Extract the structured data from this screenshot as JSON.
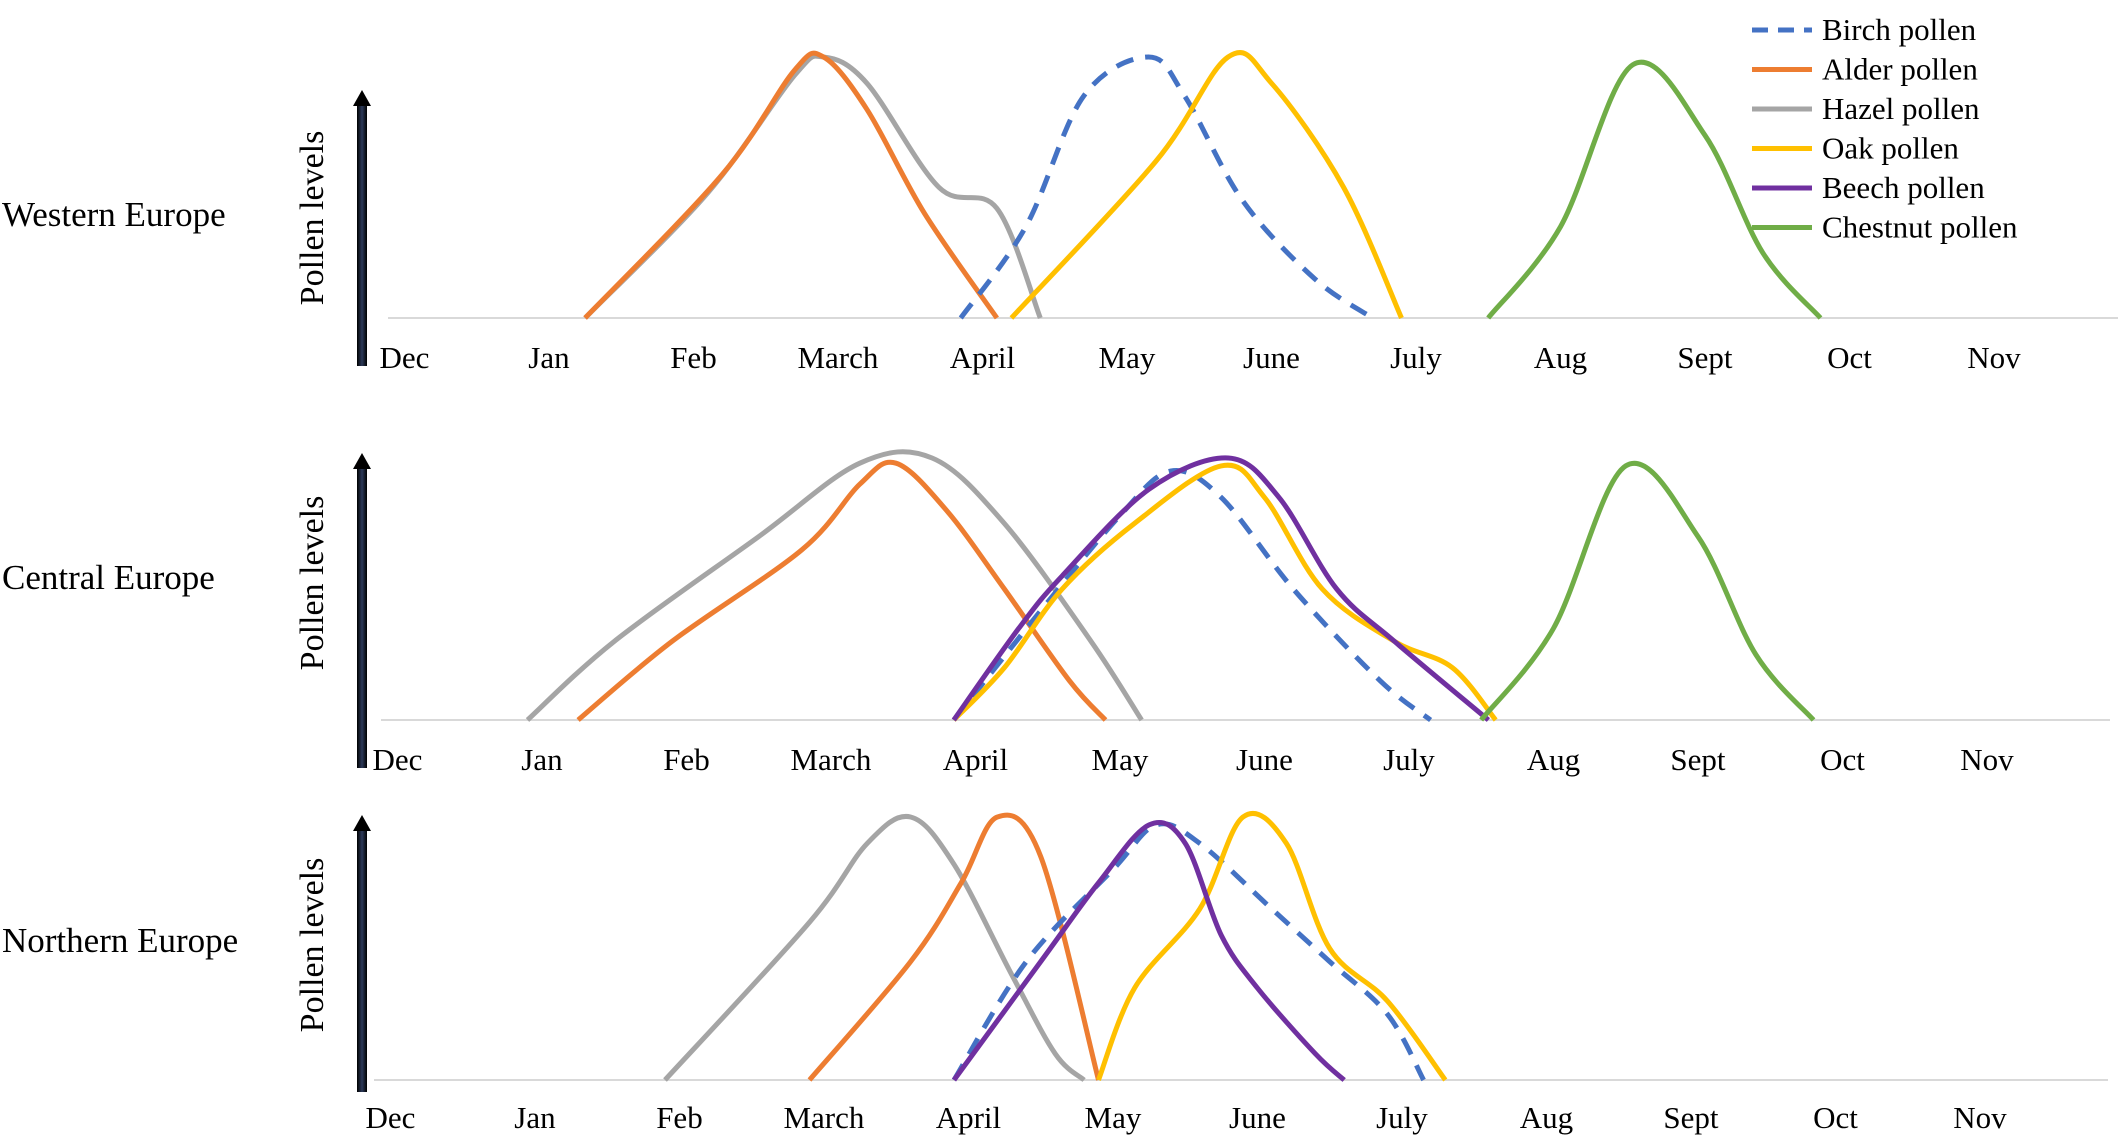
{
  "chart_data": {
    "type": "line",
    "y_axis_label": "Pollen levels",
    "months": [
      "Dec",
      "Jan",
      "Feb",
      "March",
      "April",
      "May",
      "June",
      "July",
      "Aug",
      "Sept",
      "Oct",
      "Nov"
    ],
    "x_unit": "months from start of Dec",
    "ylim": [
      0,
      1
    ],
    "legend": {
      "placement": "top-right",
      "items": [
        {
          "name": "Birch pollen",
          "color": "#4472c4",
          "dashed": true
        },
        {
          "name": "Alder pollen",
          "color": "#ed7d31",
          "dashed": false
        },
        {
          "name": "Hazel pollen",
          "color": "#a5a5a5",
          "dashed": false
        },
        {
          "name": "Oak pollen",
          "color": "#ffc000",
          "dashed": false
        },
        {
          "name": "Beech pollen",
          "color": "#7030a0",
          "dashed": false
        },
        {
          "name": "Chestnut pollen",
          "color": "#70ad47",
          "dashed": false
        }
      ]
    },
    "panels": [
      {
        "region": "Western Europe",
        "series": [
          {
            "name": "Hazel pollen",
            "points": [
              [
                1.35,
                0
              ],
              [
                2.2,
                0.48
              ],
              [
                2.8,
                0.93
              ],
              [
                3.0,
                1.0
              ],
              [
                3.3,
                0.9
              ],
              [
                3.8,
                0.5
              ],
              [
                4.2,
                0.42
              ],
              [
                4.5,
                0
              ]
            ]
          },
          {
            "name": "Alder pollen",
            "points": [
              [
                1.35,
                0
              ],
              [
                2.3,
                0.55
              ],
              [
                2.8,
                0.95
              ],
              [
                3.0,
                1.0
              ],
              [
                3.3,
                0.8
              ],
              [
                3.7,
                0.4
              ],
              [
                4.2,
                0
              ]
            ]
          },
          {
            "name": "Birch pollen",
            "points": [
              [
                3.95,
                0
              ],
              [
                4.4,
                0.35
              ],
              [
                4.8,
                0.85
              ],
              [
                5.25,
                1.0
              ],
              [
                5.5,
                0.85
              ],
              [
                5.9,
                0.45
              ],
              [
                6.4,
                0.15
              ],
              [
                6.8,
                0
              ]
            ]
          },
          {
            "name": "Oak pollen",
            "points": [
              [
                4.3,
                0
              ],
              [
                5.3,
                0.6
              ],
              [
                5.8,
                1.0
              ],
              [
                6.1,
                0.9
              ],
              [
                6.6,
                0.5
              ],
              [
                7.0,
                0
              ]
            ]
          },
          {
            "name": "Chestnut pollen",
            "points": [
              [
                7.6,
                0
              ],
              [
                8.1,
                0.35
              ],
              [
                8.6,
                0.97
              ],
              [
                9.1,
                0.7
              ],
              [
                9.5,
                0.25
              ],
              [
                9.9,
                0
              ]
            ]
          }
        ]
      },
      {
        "region": "Central Europe",
        "series": [
          {
            "name": "Hazel pollen",
            "points": [
              [
                1.0,
                0
              ],
              [
                1.6,
                0.3
              ],
              [
                2.6,
                0.7
              ],
              [
                3.3,
                0.98
              ],
              [
                3.8,
                1.0
              ],
              [
                4.3,
                0.75
              ],
              [
                4.9,
                0.3
              ],
              [
                5.25,
                0
              ]
            ]
          },
          {
            "name": "Alder pollen",
            "points": [
              [
                1.35,
                0
              ],
              [
                2.0,
                0.3
              ],
              [
                2.9,
                0.65
              ],
              [
                3.3,
                0.9
              ],
              [
                3.55,
                0.98
              ],
              [
                3.9,
                0.8
              ],
              [
                4.3,
                0.5
              ],
              [
                4.75,
                0.15
              ],
              [
                5.0,
                0
              ]
            ]
          },
          {
            "name": "Birch pollen",
            "points": [
              [
                3.95,
                0
              ],
              [
                4.6,
                0.45
              ],
              [
                5.1,
                0.78
              ],
              [
                5.45,
                0.95
              ],
              [
                5.8,
                0.85
              ],
              [
                6.3,
                0.5
              ],
              [
                6.9,
                0.15
              ],
              [
                7.25,
                0
              ]
            ]
          },
          {
            "name": "Oak pollen",
            "points": [
              [
                3.95,
                0
              ],
              [
                4.3,
                0.2
              ],
              [
                4.7,
                0.5
              ],
              [
                5.2,
                0.75
              ],
              [
                5.8,
                0.97
              ],
              [
                6.1,
                0.85
              ],
              [
                6.5,
                0.5
              ],
              [
                7.0,
                0.3
              ],
              [
                7.4,
                0.2
              ],
              [
                7.7,
                0
              ]
            ]
          },
          {
            "name": "Beech pollen",
            "points": [
              [
                3.95,
                0
              ],
              [
                4.4,
                0.35
              ],
              [
                4.7,
                0.55
              ],
              [
                5.3,
                0.88
              ],
              [
                5.85,
                1.0
              ],
              [
                6.2,
                0.85
              ],
              [
                6.6,
                0.5
              ],
              [
                7.0,
                0.3
              ],
              [
                7.65,
                0
              ]
            ]
          },
          {
            "name": "Chestnut pollen",
            "points": [
              [
                7.6,
                0
              ],
              [
                8.1,
                0.35
              ],
              [
                8.6,
                0.97
              ],
              [
                9.1,
                0.7
              ],
              [
                9.5,
                0.25
              ],
              [
                9.9,
                0
              ]
            ]
          }
        ]
      },
      {
        "region": "Northern Europe",
        "series": [
          {
            "name": "Hazel pollen",
            "points": [
              [
                2.0,
                0
              ],
              [
                3.0,
                0.6
              ],
              [
                3.4,
                0.9
              ],
              [
                3.7,
                1.0
              ],
              [
                4.0,
                0.82
              ],
              [
                4.4,
                0.4
              ],
              [
                4.7,
                0.1
              ],
              [
                4.9,
                0
              ]
            ]
          },
          {
            "name": "Alder pollen",
            "points": [
              [
                3.0,
                0
              ],
              [
                3.7,
                0.45
              ],
              [
                4.05,
                0.75
              ],
              [
                4.3,
                1.0
              ],
              [
                4.6,
                0.85
              ],
              [
                5.0,
                0
              ]
            ]
          },
          {
            "name": "Birch pollen",
            "points": [
              [
                4.0,
                0
              ],
              [
                4.5,
                0.45
              ],
              [
                5.1,
                0.8
              ],
              [
                5.4,
                0.97
              ],
              [
                5.7,
                0.9
              ],
              [
                6.2,
                0.65
              ],
              [
                6.6,
                0.45
              ],
              [
                7.0,
                0.25
              ],
              [
                7.25,
                0
              ]
            ]
          },
          {
            "name": "Oak pollen",
            "points": [
              [
                5.0,
                0
              ],
              [
                5.25,
                0.35
              ],
              [
                5.7,
                0.65
              ],
              [
                6.0,
                1.0
              ],
              [
                6.3,
                0.9
              ],
              [
                6.6,
                0.5
              ],
              [
                7.0,
                0.3
              ],
              [
                7.4,
                0
              ]
            ]
          },
          {
            "name": "Beech pollen",
            "points": [
              [
                4.0,
                0
              ],
              [
                4.6,
                0.45
              ],
              [
                5.0,
                0.75
              ],
              [
                5.35,
                0.97
              ],
              [
                5.6,
                0.9
              ],
              [
                5.85,
                0.55
              ],
              [
                6.1,
                0.35
              ],
              [
                6.5,
                0.1
              ],
              [
                6.7,
                0
              ]
            ]
          }
        ]
      }
    ]
  }
}
